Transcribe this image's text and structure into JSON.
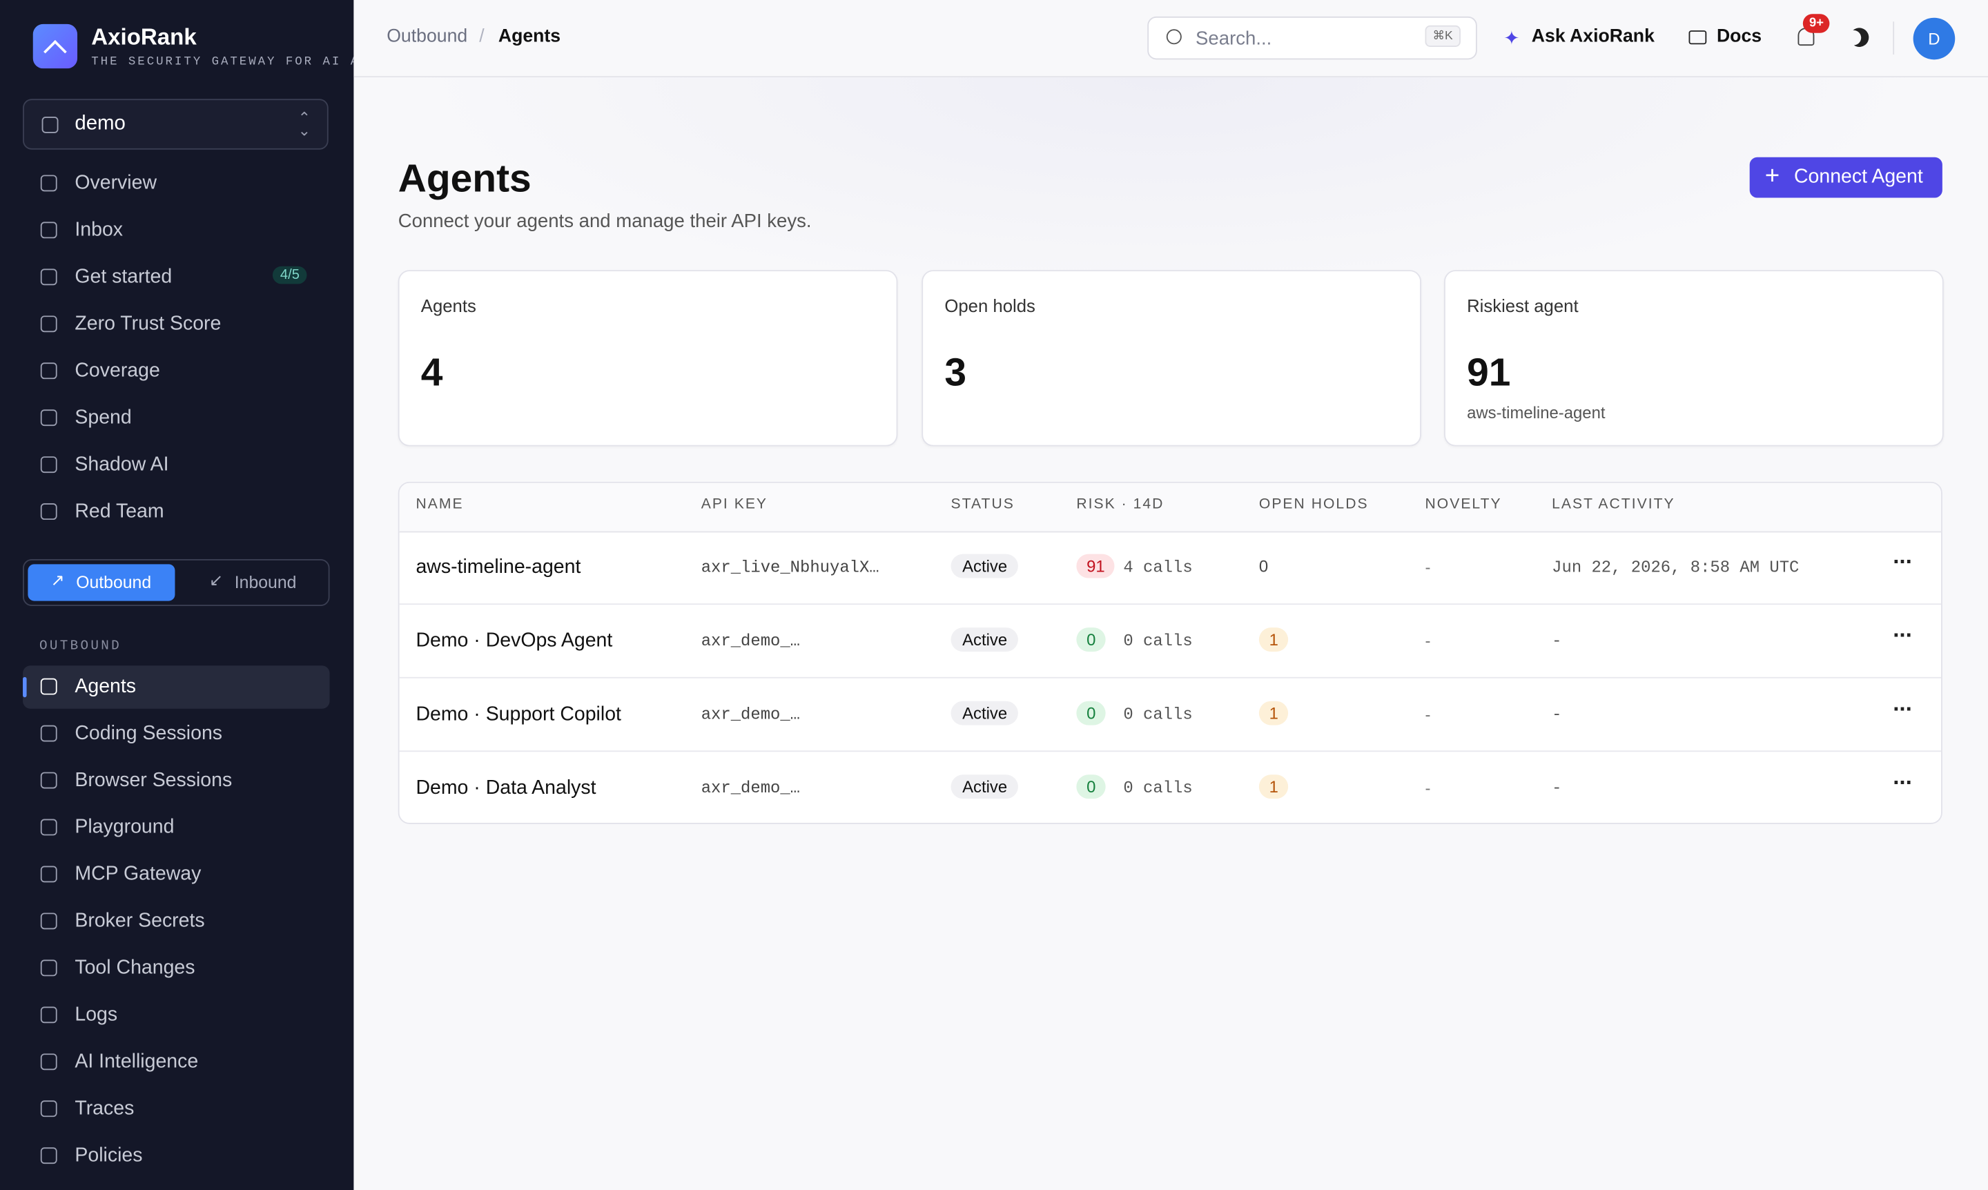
{
  "brand": {
    "name": "AxioRank",
    "tagline": "THE SECURITY GATEWAY FOR AI AGENTS"
  },
  "workspace": "demo",
  "nav": [
    {
      "label": "Overview"
    },
    {
      "label": "Inbox"
    },
    {
      "label": "Get started",
      "badge": "4/5"
    },
    {
      "label": "Zero Trust Score"
    },
    {
      "label": "Coverage"
    },
    {
      "label": "Spend"
    },
    {
      "label": "Shadow AI"
    },
    {
      "label": "Red Team"
    }
  ],
  "toggle": [
    "Outbound",
    "Inbound"
  ],
  "section": "OUTBOUND",
  "nav2": [
    {
      "label": "Agents"
    },
    {
      "label": "Coding Sessions"
    },
    {
      "label": "Browser Sessions"
    },
    {
      "label": "Playground"
    },
    {
      "label": "MCP Gateway"
    },
    {
      "label": "Broker Secrets"
    },
    {
      "label": "Tool Changes"
    },
    {
      "label": "Logs"
    },
    {
      "label": "AI Intelligence"
    },
    {
      "label": "Traces"
    },
    {
      "label": "Policies"
    }
  ],
  "topbar": {
    "breadcrumb": [
      "Outbound",
      "Agents"
    ],
    "search": "Search...",
    "shortcut": "⌘K",
    "ask": "Ask AxioRank",
    "docs": "Docs",
    "notifications": "9+",
    "avatar": "D"
  },
  "page": {
    "title": "Agents",
    "subtitle": "Connect your agents and manage their API keys.",
    "button": "Connect Agent"
  },
  "stats": [
    {
      "label": "Agents",
      "value": "4"
    },
    {
      "label": "Open holds",
      "value": "3"
    },
    {
      "label": "Riskiest agent",
      "value": "91",
      "sub": "aws-timeline-agent"
    }
  ],
  "table": {
    "columns": [
      "NAME",
      "API KEY",
      "STATUS",
      "RISK · 14D",
      "OPEN HOLDS",
      "NOVELTY",
      "LAST ACTIVITY"
    ],
    "rows": [
      {
        "name": "aws-timeline-agent",
        "key": "axr_live_NbhuyalX…",
        "status": "Active",
        "risk": "91",
        "calls": "4 calls",
        "holds": "0",
        "novelty": "-",
        "last": "Jun 22, 2026, 8:58 AM UTC"
      },
      {
        "name": "Demo · DevOps Agent",
        "key": "axr_demo_…",
        "status": "Active",
        "risk": "0",
        "calls": "0 calls",
        "holds": "1",
        "novelty": "-",
        "last": "-"
      },
      {
        "name": "Demo · Support Copilot",
        "key": "axr_demo_…",
        "status": "Active",
        "risk": "0",
        "calls": "0 calls",
        "holds": "1",
        "novelty": "-",
        "last": "-"
      },
      {
        "name": "Demo · Data Analyst",
        "key": "axr_demo_…",
        "status": "Active",
        "risk": "0",
        "calls": "0 calls",
        "holds": "1",
        "novelty": "-",
        "last": "-"
      }
    ]
  }
}
